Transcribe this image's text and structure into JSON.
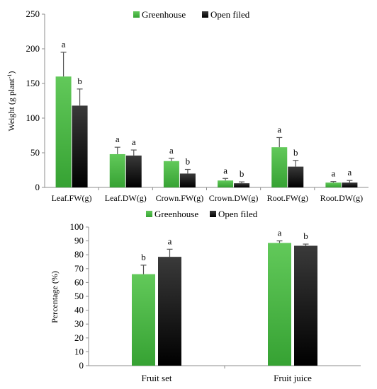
{
  "colors": {
    "greenhouse_top": "#62c95a",
    "greenhouse_bottom": "#36a233",
    "open_top": "#3a3a3a",
    "open_bottom": "#000000",
    "axis": "#8c8c8c",
    "error_bar": "#555555"
  },
  "chart_data": [
    {
      "type": "bar",
      "title": "",
      "xlabel": "",
      "ylabel": "Weight (g plant",
      "ylabel_sup": "-1",
      "ylabel_tail": ")",
      "ylim": [
        0,
        250
      ],
      "yticks": [
        0,
        50,
        100,
        150,
        200,
        250
      ],
      "grid": false,
      "legend_position": "top-center",
      "categories": [
        "Leaf.FW(g)",
        "Leaf.DW(g)",
        "Crown.FW(g)",
        "Crown.DW(g)",
        "Root.FW(g)",
        "Root.DW(g)"
      ],
      "series": [
        {
          "name": "Greenhouse",
          "values": [
            160,
            48,
            38,
            10,
            58,
            7
          ],
          "errors": [
            35,
            10,
            4,
            3,
            14,
            1.5
          ],
          "letters": [
            "a",
            "a",
            "a",
            "a",
            "a",
            "a"
          ]
        },
        {
          "name": "Open filed",
          "values": [
            118,
            46,
            20,
            6,
            30,
            7
          ],
          "errors": [
            24,
            8,
            6,
            2,
            9,
            3
          ],
          "letters": [
            "b",
            "a",
            "b",
            "b",
            "b",
            "a"
          ]
        }
      ]
    },
    {
      "type": "bar",
      "title": "",
      "xlabel": "",
      "ylabel": "Percentage (%)",
      "ylim": [
        0,
        100
      ],
      "yticks": [
        0,
        10,
        20,
        30,
        40,
        50,
        60,
        70,
        80,
        90,
        100
      ],
      "grid": false,
      "legend_position": "top-center",
      "categories": [
        "Fruit set",
        "Fruit juice"
      ],
      "series": [
        {
          "name": "Greenhouse",
          "values": [
            66,
            88.5
          ],
          "errors": [
            6.5,
            1.5
          ],
          "letters": [
            "b",
            "a"
          ]
        },
        {
          "name": "Open filed",
          "values": [
            78.5,
            86.5
          ],
          "errors": [
            5.5,
            1.2
          ],
          "letters": [
            "a",
            "b"
          ]
        }
      ]
    }
  ]
}
